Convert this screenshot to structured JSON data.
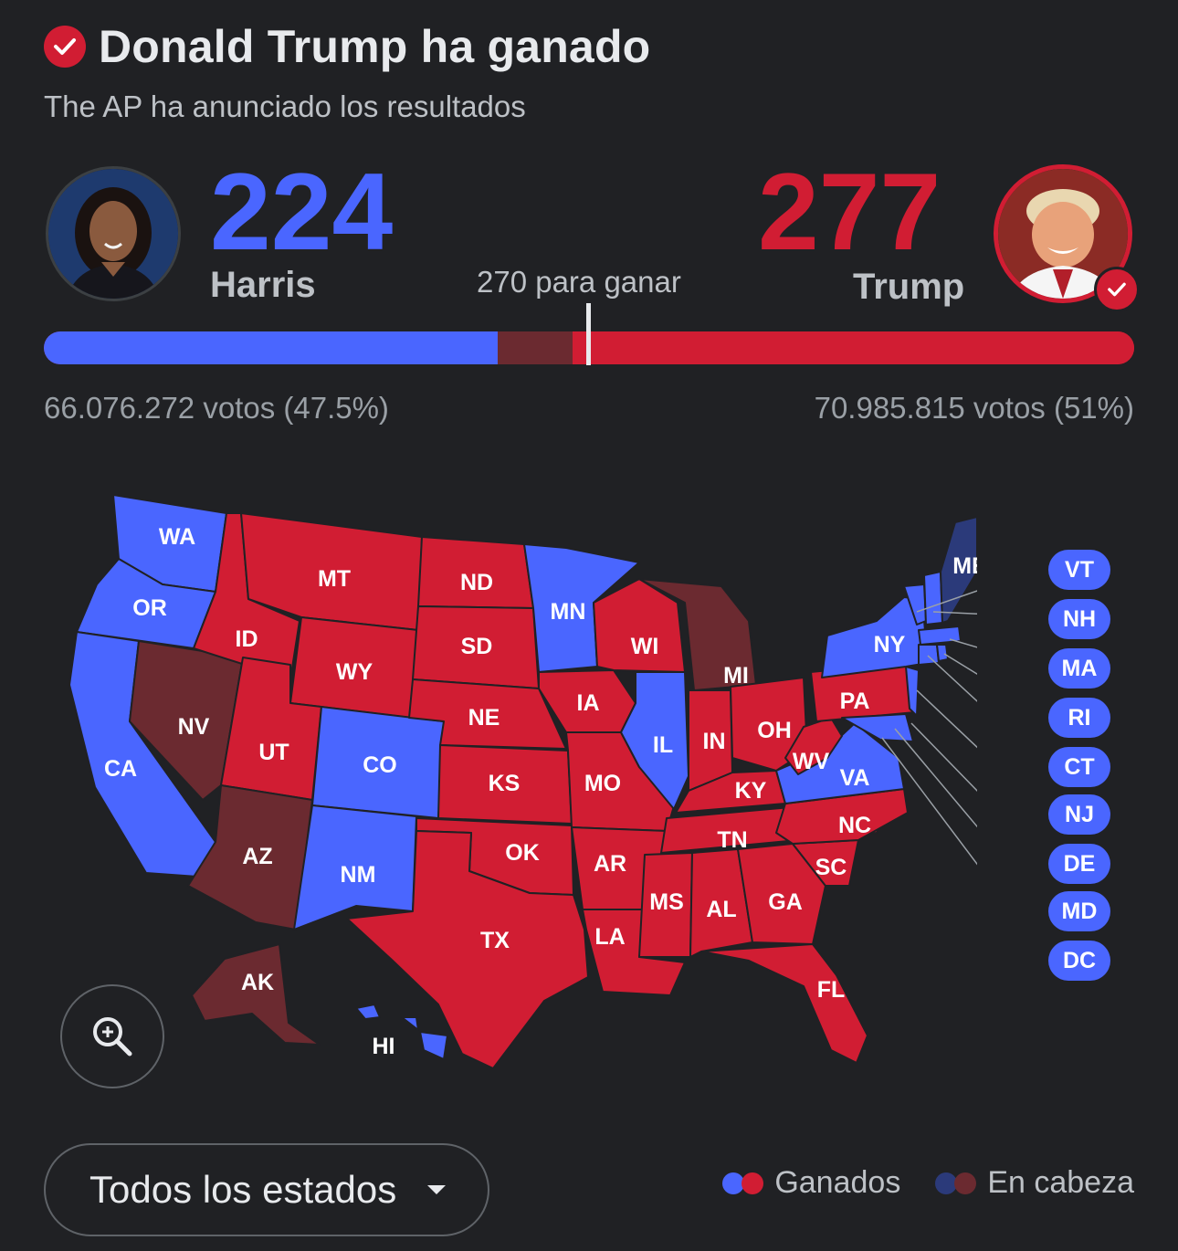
{
  "header": {
    "title": "Donald Trump ha ganado",
    "subtitle": "The AP ha anunciado los resultados",
    "check_icon": "check-circle-icon"
  },
  "candidates": {
    "harris": {
      "name": "Harris",
      "electoral_votes": "224",
      "popular_vote": "66.076.272 votos (47.5%)",
      "color": "#4a66ff"
    },
    "trump": {
      "name": "Trump",
      "electoral_votes": "277",
      "popular_vote": "70.985.815 votos (51%)",
      "color": "#d11d33",
      "winner": true
    }
  },
  "threshold": {
    "label": "270 para ganar",
    "value": 270,
    "total": 538
  },
  "bar": {
    "harris_won": 224,
    "harris_leading": 0,
    "trump_leading": 37,
    "trump_won": 277
  },
  "colors": {
    "dem_won": "#4a66ff",
    "rep_won": "#d11d33",
    "dem_leading": "#2b3a7a",
    "rep_leading": "#6b2a30",
    "background": "#202124"
  },
  "map": {
    "state_labels": [
      "WA",
      "OR",
      "CA",
      "ID",
      "NV",
      "MT",
      "WY",
      "UT",
      "AZ",
      "CO",
      "NM",
      "ND",
      "SD",
      "NE",
      "KS",
      "OK",
      "TX",
      "MN",
      "IA",
      "MO",
      "AR",
      "LA",
      "WI",
      "IL",
      "MI",
      "IN",
      "OH",
      "KY",
      "TN",
      "MS",
      "AL",
      "GA",
      "FL",
      "SC",
      "NC",
      "VA",
      "WV",
      "PA",
      "NY",
      "ME",
      "AK",
      "HI"
    ],
    "small_states": [
      "VT",
      "NH",
      "MA",
      "RI",
      "CT",
      "NJ",
      "DE",
      "MD",
      "DC"
    ]
  },
  "controls": {
    "zoom_icon": "zoom-in-icon",
    "dropdown_label": "Todos los estados",
    "dropdown_icon": "caret-down-icon"
  },
  "legend": {
    "won_label": "Ganados",
    "leading_label": "En cabeza"
  }
}
